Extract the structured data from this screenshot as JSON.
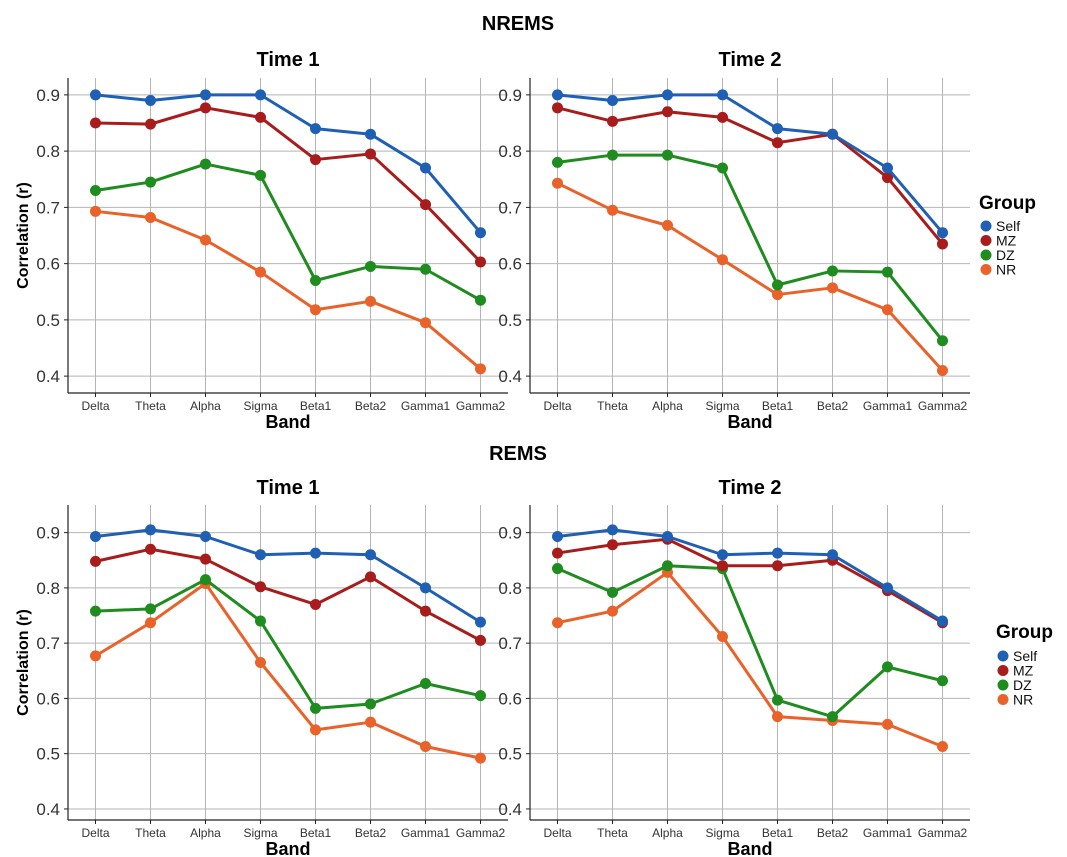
{
  "figure": {
    "legend_title": "Group",
    "groups": [
      {
        "name": "Self",
        "color": "#1f5fb4"
      },
      {
        "name": "MZ",
        "color": "#a81c1c"
      },
      {
        "name": "DZ",
        "color": "#1e8c1e"
      },
      {
        "name": "NR",
        "color": "#e8622a"
      }
    ]
  },
  "chart_data": [
    {
      "type": "line",
      "section": "NREMS",
      "title": "Time 1",
      "xlabel": "Band",
      "ylabel": "Correlation (r)",
      "categories": [
        "Delta",
        "Theta",
        "Alpha",
        "Sigma",
        "Beta1",
        "Beta2",
        "Gamma1",
        "Gamma2"
      ],
      "ylim": [
        0.37,
        0.93
      ],
      "yticks": [
        0.4,
        0.5,
        0.6,
        0.7,
        0.8,
        0.9
      ],
      "grid": true,
      "legend": "right",
      "series": [
        {
          "name": "Self",
          "values": [
            0.9,
            0.89,
            0.9,
            0.9,
            0.84,
            0.83,
            0.77,
            0.655
          ]
        },
        {
          "name": "MZ",
          "values": [
            0.85,
            0.848,
            0.877,
            0.86,
            0.785,
            0.795,
            0.705,
            0.603
          ]
        },
        {
          "name": "DZ",
          "values": [
            0.73,
            0.745,
            0.777,
            0.757,
            0.57,
            0.595,
            0.59,
            0.535
          ]
        },
        {
          "name": "NR",
          "values": [
            0.693,
            0.682,
            0.642,
            0.585,
            0.518,
            0.533,
            0.495,
            0.413
          ]
        }
      ]
    },
    {
      "type": "line",
      "section": "NREMS",
      "title": "Time 2",
      "xlabel": "Band",
      "ylabel": "",
      "categories": [
        "Delta",
        "Theta",
        "Alpha",
        "Sigma",
        "Beta1",
        "Beta2",
        "Gamma1",
        "Gamma2"
      ],
      "ylim": [
        0.37,
        0.93
      ],
      "yticks": [
        0.4,
        0.5,
        0.6,
        0.7,
        0.8,
        0.9
      ],
      "grid": true,
      "legend": "right",
      "series": [
        {
          "name": "Self",
          "values": [
            0.9,
            0.89,
            0.9,
            0.9,
            0.84,
            0.83,
            0.77,
            0.655
          ]
        },
        {
          "name": "MZ",
          "values": [
            0.877,
            0.853,
            0.87,
            0.86,
            0.815,
            0.83,
            0.753,
            0.635
          ]
        },
        {
          "name": "DZ",
          "values": [
            0.78,
            0.793,
            0.793,
            0.77,
            0.562,
            0.587,
            0.585,
            0.463
          ]
        },
        {
          "name": "NR",
          "values": [
            0.743,
            0.695,
            0.668,
            0.607,
            0.545,
            0.557,
            0.518,
            0.41
          ]
        }
      ]
    },
    {
      "type": "line",
      "section": "REMS",
      "title": "Time 1",
      "xlabel": "Band",
      "ylabel": "Correlation (r)",
      "categories": [
        "Delta",
        "Theta",
        "Alpha",
        "Sigma",
        "Beta1",
        "Beta2",
        "Gamma1",
        "Gamma2"
      ],
      "ylim": [
        0.38,
        0.95
      ],
      "yticks": [
        0.4,
        0.5,
        0.6,
        0.7,
        0.8,
        0.9
      ],
      "grid": true,
      "legend": "right",
      "series": [
        {
          "name": "Self",
          "values": [
            0.893,
            0.905,
            0.893,
            0.86,
            0.863,
            0.86,
            0.8,
            0.738
          ]
        },
        {
          "name": "MZ",
          "values": [
            0.848,
            0.87,
            0.852,
            0.802,
            0.77,
            0.82,
            0.758,
            0.705
          ]
        },
        {
          "name": "DZ",
          "values": [
            0.758,
            0.762,
            0.815,
            0.74,
            0.582,
            0.59,
            0.627,
            0.605
          ]
        },
        {
          "name": "NR",
          "values": [
            0.677,
            0.737,
            0.808,
            0.665,
            0.543,
            0.557,
            0.513,
            0.492
          ]
        }
      ]
    },
    {
      "type": "line",
      "section": "REMS",
      "title": "Time 2",
      "xlabel": "Band",
      "ylabel": "",
      "categories": [
        "Delta",
        "Theta",
        "Alpha",
        "Sigma",
        "Beta1",
        "Beta2",
        "Gamma1",
        "Gamma2"
      ],
      "ylim": [
        0.38,
        0.95
      ],
      "yticks": [
        0.4,
        0.5,
        0.6,
        0.7,
        0.8,
        0.9
      ],
      "grid": true,
      "legend": "right",
      "series": [
        {
          "name": "Self",
          "values": [
            0.893,
            0.905,
            0.893,
            0.86,
            0.863,
            0.86,
            0.8,
            0.74
          ]
        },
        {
          "name": "MZ",
          "values": [
            0.863,
            0.878,
            0.888,
            0.84,
            0.84,
            0.85,
            0.795,
            0.737
          ]
        },
        {
          "name": "DZ",
          "values": [
            0.835,
            0.792,
            0.84,
            0.835,
            0.597,
            0.567,
            0.657,
            0.632
          ]
        },
        {
          "name": "NR",
          "values": [
            0.737,
            0.758,
            0.828,
            0.712,
            0.567,
            0.56,
            0.553,
            0.513
          ]
        }
      ]
    }
  ]
}
